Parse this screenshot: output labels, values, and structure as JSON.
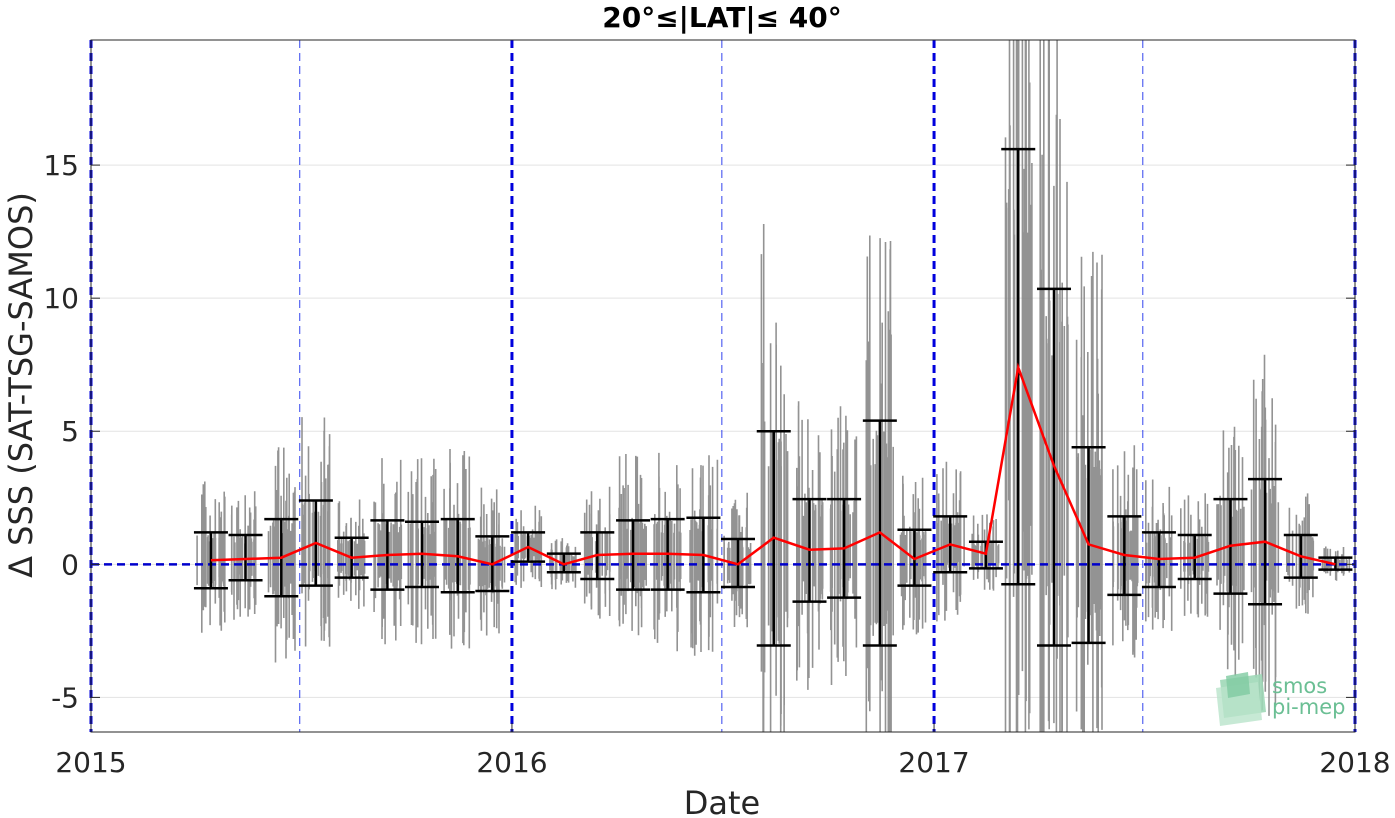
{
  "chart_data": {
    "type": "line",
    "title": "20°≤|LAT|≤ 40°",
    "xlabel": "Date",
    "ylabel": "Δ SSS (SAT-TSG-SAMOS)",
    "xlim": [
      "2015-01-01",
      "2018-01-01"
    ],
    "ylim": [
      -6.3,
      19.7
    ],
    "x_ticks": [
      "2015",
      "2016",
      "2017",
      "2018"
    ],
    "y_ticks": [
      -5,
      0,
      5,
      10,
      15
    ],
    "grid": true,
    "reference_line": {
      "y": 0,
      "style": "dashed",
      "color": "#0000cc"
    },
    "vertical_markers": {
      "thick": [
        "2015-01-01",
        "2016-01-01",
        "2017-01-01",
        "2018-01-01"
      ],
      "thin": [
        "2015-07-01",
        "2016-07-01",
        "2017-07-01"
      ]
    },
    "series": [
      {
        "type": "errorbar_line",
        "color": "#ff0000",
        "errorbar_color": "#000000",
        "points": [
          {
            "x": "2015-04-15",
            "y": 0.15,
            "low": -0.9,
            "high": 1.2
          },
          {
            "x": "2015-05-15",
            "y": 0.2,
            "low": -0.6,
            "high": 1.1
          },
          {
            "x": "2015-06-15",
            "y": 0.25,
            "low": -1.2,
            "high": 1.7
          },
          {
            "x": "2015-07-15",
            "y": 0.8,
            "low": -0.8,
            "high": 2.4
          },
          {
            "x": "2015-08-15",
            "y": 0.25,
            "low": -0.5,
            "high": 1.0
          },
          {
            "x": "2015-09-15",
            "y": 0.35,
            "low": -0.95,
            "high": 1.65
          },
          {
            "x": "2015-10-15",
            "y": 0.4,
            "low": -0.85,
            "high": 1.6
          },
          {
            "x": "2015-11-15",
            "y": 0.3,
            "low": -1.05,
            "high": 1.7
          },
          {
            "x": "2015-12-15",
            "y": 0.0,
            "low": -1.0,
            "high": 1.05
          },
          {
            "x": "2016-01-15",
            "y": 0.65,
            "low": 0.1,
            "high": 1.2
          },
          {
            "x": "2016-02-15",
            "y": 0.0,
            "low": -0.3,
            "high": 0.4
          },
          {
            "x": "2016-03-15",
            "y": 0.35,
            "low": -0.55,
            "high": 1.2
          },
          {
            "x": "2016-04-15",
            "y": 0.4,
            "low": -0.95,
            "high": 1.65
          },
          {
            "x": "2016-05-15",
            "y": 0.4,
            "low": -0.95,
            "high": 1.7
          },
          {
            "x": "2016-06-15",
            "y": 0.35,
            "low": -1.05,
            "high": 1.75
          },
          {
            "x": "2016-07-15",
            "y": 0.0,
            "low": -0.85,
            "high": 0.95
          },
          {
            "x": "2016-08-15",
            "y": 1.0,
            "low": -3.05,
            "high": 5.0
          },
          {
            "x": "2016-09-15",
            "y": 0.55,
            "low": -1.4,
            "high": 2.45
          },
          {
            "x": "2016-10-15",
            "y": 0.6,
            "low": -1.25,
            "high": 2.45
          },
          {
            "x": "2016-11-15",
            "y": 1.2,
            "low": -3.05,
            "high": 5.4
          },
          {
            "x": "2016-12-15",
            "y": 0.2,
            "low": -0.8,
            "high": 1.3
          },
          {
            "x": "2017-01-15",
            "y": 0.75,
            "low": -0.3,
            "high": 1.8
          },
          {
            "x": "2017-02-15",
            "y": 0.4,
            "low": -0.15,
            "high": 0.85
          },
          {
            "x": "2017-03-15",
            "y": 7.4,
            "low": -0.75,
            "high": 15.6
          },
          {
            "x": "2017-04-15",
            "y": 3.7,
            "low": -3.05,
            "high": 10.35
          },
          {
            "x": "2017-05-15",
            "y": 0.75,
            "low": -2.95,
            "high": 4.4
          },
          {
            "x": "2017-06-15",
            "y": 0.35,
            "low": -1.15,
            "high": 1.8
          },
          {
            "x": "2017-07-15",
            "y": 0.2,
            "low": -0.85,
            "high": 1.2
          },
          {
            "x": "2017-08-15",
            "y": 0.25,
            "low": -0.55,
            "high": 1.1
          },
          {
            "x": "2017-09-15",
            "y": 0.7,
            "low": -1.1,
            "high": 2.45
          },
          {
            "x": "2017-10-15",
            "y": 0.85,
            "low": -1.5,
            "high": 3.2
          },
          {
            "x": "2017-11-15",
            "y": 0.3,
            "low": -0.5,
            "high": 1.1
          },
          {
            "x": "2017-12-15",
            "y": 0.0,
            "low": -0.2,
            "high": 0.25
          }
        ]
      }
    ],
    "scatter_color": "#808080"
  },
  "logo": {
    "line1": "smos",
    "line2": "pi-mep"
  }
}
